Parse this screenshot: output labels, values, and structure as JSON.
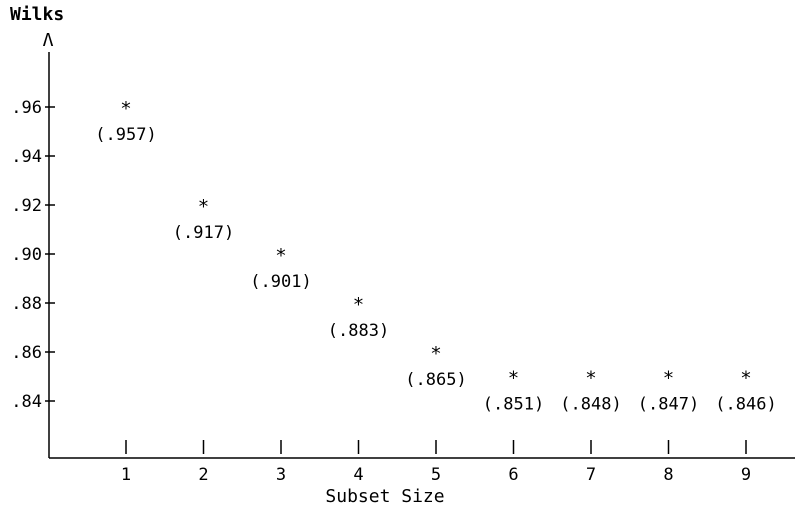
{
  "chart_data": {
    "type": "scatter",
    "title": "",
    "ylabel_line1": "Wilks",
    "ylabel_line2": "Λ",
    "xlabel": "Subset Size",
    "x": [
      1,
      2,
      3,
      4,
      5,
      6,
      7,
      8,
      9
    ],
    "y": [
      0.957,
      0.917,
      0.901,
      0.883,
      0.865,
      0.851,
      0.848,
      0.847,
      0.846
    ],
    "point_plotted_values": [
      0.96,
      0.92,
      0.9,
      0.88,
      0.86,
      0.85,
      0.85,
      0.85,
      0.85
    ],
    "point_labels": [
      "(.957)",
      "(.917)",
      "(.901)",
      "(.883)",
      "(.865)",
      "(.851)",
      "(.848)",
      "(.847)",
      "(.846)"
    ],
    "marker": "*",
    "xticks": [
      1,
      2,
      3,
      4,
      5,
      6,
      7,
      8,
      9
    ],
    "xtick_labels": [
      "1",
      "2",
      "3",
      "4",
      "5",
      "6",
      "7",
      "8",
      "9"
    ],
    "yticks": [
      0.96,
      0.94,
      0.92,
      0.9,
      0.88,
      0.86,
      0.84
    ],
    "ytick_labels": [
      ".96",
      ".94",
      ".92",
      ".90",
      ".88",
      ".86",
      ".84"
    ],
    "xlim": [
      0,
      9.6
    ],
    "ylim": [
      0.82,
      0.98
    ],
    "grid": false,
    "colors": {
      "ink": "#000000",
      "background": "#ffffff"
    }
  }
}
